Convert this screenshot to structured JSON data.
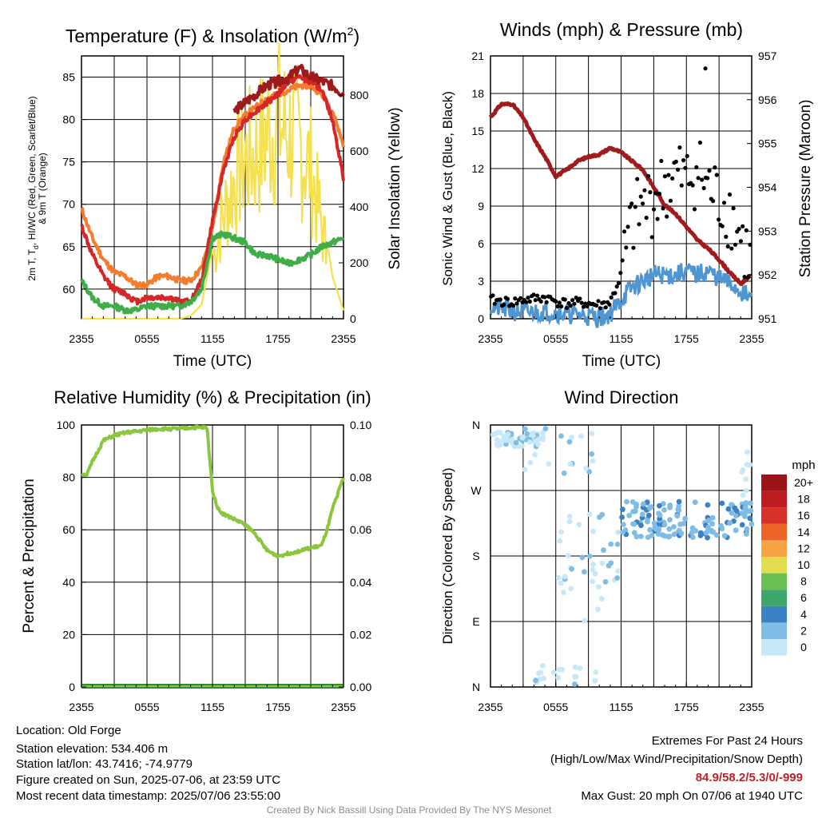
{
  "colors": {
    "temperature": "#d62728",
    "dewpoint": "#3fae49",
    "heat_index_wc": "#9e1b1b",
    "temp_9m": "#f47c30",
    "insolation": "#f5e04e",
    "wind_speed": "#4f95d1",
    "wind_gust": "#000000",
    "pressure": "#a01c1c",
    "rh": "#8cc63f",
    "precip": "#2e8b3e",
    "extremes": "#c41e25"
  },
  "chart_data": [
    {
      "type": "line",
      "title": "Temperature (F) & Insolation (W/m²)",
      "title_main": "Temperature (F) & Insolation (W/m",
      "title_sup": "2",
      "title_end": ")",
      "xlabel": "Time (UTC)",
      "ylabel_left_1": "2m T, T",
      "ylabel_left_sub": "d",
      "ylabel_left_2": ", HI/WC (Red, Green, Scarlet/Blue)",
      "ylabel_left_3": "& 9m T (Orange)",
      "ylabel_right": "Solar Insolation (Yellow)",
      "x_ticks": [
        "2355",
        "0555",
        "1155",
        "1755",
        "2355"
      ],
      "y_left_ticks": [
        "60",
        "65",
        "70",
        "75",
        "80",
        "85"
      ],
      "y_left_range": [
        56.5,
        87.5
      ],
      "y_right_ticks": [
        "0",
        "200",
        "400",
        "600",
        "800"
      ],
      "y_right_range": [
        0,
        940
      ],
      "hours": [
        0,
        1,
        2,
        3,
        4,
        5,
        6,
        7,
        8,
        9,
        10,
        11,
        12,
        13,
        14,
        15,
        16,
        17,
        18,
        19,
        20,
        21,
        22,
        23,
        24
      ],
      "series": [
        {
          "key": "temp_9m",
          "values": [
            69.5,
            66,
            63.5,
            62,
            61.5,
            60.5,
            60.5,
            61.5,
            61.5,
            61,
            61,
            62.5,
            67,
            75,
            79,
            80.5,
            81.5,
            82.5,
            83,
            83.5,
            84,
            84,
            83,
            81,
            77
          ]
        },
        {
          "key": "temperature",
          "values": [
            67.5,
            64,
            61.5,
            60,
            59.5,
            58.5,
            59,
            59,
            59,
            58.5,
            58.5,
            61,
            68,
            74,
            78,
            80,
            81,
            82,
            83,
            84.5,
            85,
            84.5,
            83.5,
            80,
            73
          ]
        },
        {
          "key": "dewpoint",
          "values": [
            61,
            59,
            58,
            58,
            57.5,
            57.5,
            58,
            58,
            58,
            58,
            58.5,
            60,
            66,
            66.5,
            66,
            65.5,
            64,
            64,
            63.5,
            63,
            63.5,
            64,
            65,
            65.5,
            66
          ]
        },
        {
          "key": "heat_index_wc",
          "values": [
            null,
            null,
            null,
            null,
            null,
            null,
            null,
            null,
            null,
            null,
            null,
            null,
            null,
            null,
            81,
            82,
            83,
            84,
            84.5,
            85,
            86,
            85,
            84.5,
            84,
            83
          ]
        }
      ],
      "insolation": [
        0,
        0,
        0,
        0,
        0,
        0,
        0,
        0,
        0,
        0,
        10,
        50,
        250,
        450,
        600,
        690,
        720,
        800,
        850,
        800,
        750,
        650,
        400,
        150,
        30
      ]
    },
    {
      "type": "line",
      "title": "Winds (mph) & Pressure (mb)",
      "xlabel": "Time (UTC)",
      "ylabel_left": "Sonic Wind & Gust (Blue, Black)",
      "ylabel_right": "Station Pressure (Maroon)",
      "x_ticks": [
        "2355",
        "0555",
        "1155",
        "1755",
        "2355"
      ],
      "y_left_ticks": [
        "0",
        "3",
        "6",
        "9",
        "12",
        "15",
        "18",
        "21"
      ],
      "y_left_range": [
        0,
        21
      ],
      "y_right_ticks": [
        "951",
        "952",
        "953",
        "954",
        "955",
        "956",
        "957"
      ],
      "y_right_range": [
        951,
        957
      ],
      "hours": [
        0,
        1,
        2,
        3,
        4,
        5,
        6,
        7,
        8,
        9,
        10,
        11,
        12,
        13,
        14,
        15,
        16,
        17,
        18,
        19,
        20,
        21,
        22,
        23,
        24
      ],
      "wind_speed": [
        1.0,
        0.8,
        0.6,
        0.5,
        0.5,
        0.6,
        0.5,
        0.4,
        0.3,
        0.2,
        0.1,
        0.4,
        1.5,
        2.5,
        3.0,
        3.5,
        3.5,
        3.5,
        3.8,
        3.5,
        3.8,
        3.2,
        2.8,
        2.2,
        1.5
      ],
      "gust": [
        1.5,
        1.4,
        1.3,
        1.5,
        1.6,
        1.7,
        1.4,
        1.2,
        1.3,
        1.2,
        1.1,
        1.3,
        3.5,
        7.5,
        9.0,
        9.5,
        10.5,
        11.5,
        11.0,
        12.0,
        10.5,
        9.5,
        8.5,
        6.5,
        4.0
      ],
      "pressure": [
        955.6,
        955.9,
        955.9,
        955.6,
        955.1,
        954.7,
        954.25,
        954.4,
        954.6,
        954.7,
        954.75,
        954.9,
        954.8,
        954.6,
        954.4,
        954.0,
        953.6,
        953.4,
        953.1,
        952.8,
        952.6,
        952.35,
        952.05,
        951.8,
        952.0
      ],
      "max_gust_marker": {
        "hour": 19.75,
        "value": 20
      }
    },
    {
      "type": "line",
      "title": "Relative Humidity (%) & Precipitation (in)",
      "ylabel_left": "Percent & Precipitation",
      "x_ticks": [
        "2355",
        "0555",
        "1155",
        "1755",
        "2355"
      ],
      "y_left_ticks": [
        "0",
        "20",
        "40",
        "60",
        "80",
        "100"
      ],
      "y_left_range": [
        0,
        100
      ],
      "y_right_ticks": [
        "0.00",
        "0.02",
        "0.04",
        "0.06",
        "0.08",
        "0.10"
      ],
      "y_right_range": [
        0,
        0.1
      ],
      "hours": [
        0,
        0.5,
        1,
        2,
        3,
        4,
        5,
        6,
        7,
        8,
        9,
        10,
        11,
        11.5,
        12,
        12.5,
        13,
        14,
        15,
        16,
        17,
        18,
        19,
        20,
        21,
        22,
        22.5,
        23,
        24
      ],
      "rh": [
        81,
        81,
        86,
        94,
        96,
        97,
        97.5,
        98,
        98.5,
        98.5,
        98.5,
        99,
        99,
        99,
        75,
        68,
        66,
        64,
        62,
        58,
        52,
        50,
        51,
        52,
        53,
        54,
        60,
        68,
        80
      ],
      "precip": [
        0,
        0
      ]
    },
    {
      "type": "scatter",
      "title": "Wind Direction",
      "ylabel_left": "Direction (Colored By Speed)",
      "x_ticks": [
        "2355",
        "0555",
        "1155",
        "1755",
        "2355"
      ],
      "y_ticks": [
        "N",
        "E",
        "S",
        "W",
        "N"
      ],
      "y_range": [
        0,
        360
      ],
      "legend_title": "mph",
      "legend_labels": [
        "0",
        "2",
        "4",
        "6",
        "8",
        "10",
        "12",
        "14",
        "16",
        "18",
        "20+"
      ],
      "legend_colors": [
        "#c7e8f8",
        "#7fbde6",
        "#3b82c4",
        "#3da66b",
        "#69bf4f",
        "#e4dc4f",
        "#f6a443",
        "#ee6529",
        "#d7312a",
        "#bd1c22",
        "#9b1518"
      ],
      "clusters": [
        {
          "h0": 0,
          "h1": 4.5,
          "d0": 330,
          "d1": 350,
          "speed": 0.5,
          "n": 55
        },
        {
          "h0": 3,
          "h1": 9.5,
          "d0": 290,
          "d1": 355,
          "speed": 0.5,
          "n": 22
        },
        {
          "h0": 6,
          "h1": 10.5,
          "d0": 90,
          "d1": 240,
          "speed": 0.5,
          "n": 30
        },
        {
          "h0": 3.5,
          "h1": 10,
          "d0": 0,
          "d1": 30,
          "speed": 0.5,
          "n": 18
        },
        {
          "h0": 10,
          "h1": 12,
          "d0": 140,
          "d1": 220,
          "speed": 1.5,
          "n": 10
        },
        {
          "h0": 12,
          "h1": 24,
          "d0": 205,
          "d1": 255,
          "speed": 2.5,
          "n": 140
        },
        {
          "h0": 23,
          "h1": 24,
          "d0": 250,
          "d1": 330,
          "speed": 0.8,
          "n": 8
        }
      ]
    }
  ],
  "info": {
    "location": "Location: Old Forge",
    "elevation": "Station elevation: 534.406 m",
    "latlon": "Station lat/lon: 43.7416; -74.9779",
    "created": "Figure created on Sun, 2025-07-06, at 23:59 UTC",
    "recent": "Most recent data timestamp: 2025/07/06 23:55:00"
  },
  "extremes": {
    "title": "Extremes For Past 24 Hours",
    "subtitle": "(High/Low/Max Wind/Precipitation/Snow Depth)",
    "values": "84.9/58.2/5.3/0/-999",
    "max_gust": "Max Gust: 20 mph On 07/06 at 1940 UTC"
  },
  "credit": "Created By Nick Bassill Using Data Provided By The NYS Mesonet"
}
